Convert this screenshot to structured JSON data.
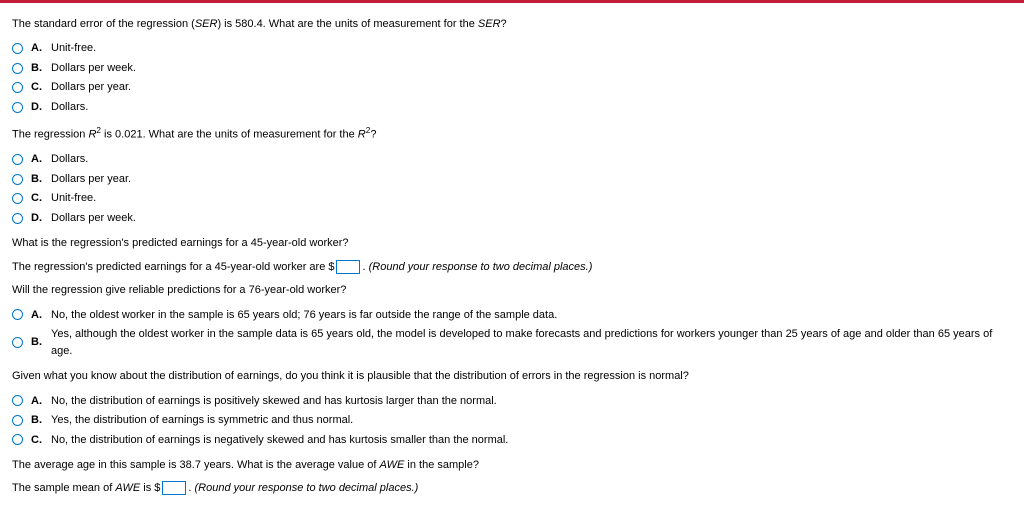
{
  "q1": {
    "prompt_pre": "The standard error of the regression (",
    "prompt_italic": "SER",
    "prompt_post": ") is 580.4. What are the units of measurement for the ",
    "prompt_italic2": "SER",
    "prompt_end": "?",
    "options": [
      {
        "letter": "A.",
        "text": "Unit-free."
      },
      {
        "letter": "B.",
        "text": "Dollars per week."
      },
      {
        "letter": "C.",
        "text": "Dollars per year."
      },
      {
        "letter": "D.",
        "text": "Dollars."
      }
    ]
  },
  "q2": {
    "prompt_pre": "The regression ",
    "prompt_italic": "R",
    "prompt_sup": "2",
    "prompt_mid": " is 0.021. What are the units of measurement for the ",
    "prompt_italic2": "R",
    "prompt_sup2": "2",
    "prompt_end": "?",
    "options": [
      {
        "letter": "A.",
        "text": "Dollars."
      },
      {
        "letter": "B.",
        "text": "Dollars per year."
      },
      {
        "letter": "C.",
        "text": "Unit-free."
      },
      {
        "letter": "D.",
        "text": "Dollars per week."
      }
    ]
  },
  "q3": {
    "prompt": "What is the regression's predicted earnings for a 45-year-old worker?",
    "line_pre": "The regression's predicted earnings for a 45-year-old worker are $",
    "line_post": ". ",
    "hint": "(Round your response to two decimal places.)"
  },
  "q4": {
    "prompt": "Will the regression give reliable predictions for a 76-year-old worker?",
    "options": [
      {
        "letter": "A.",
        "text": "No, the oldest worker in the sample is 65 years old; 76 years is far outside the range of the sample data."
      },
      {
        "letter": "B.",
        "text": "Yes, although the oldest worker in the sample data is 65 years old, the model is developed to make forecasts and predictions for workers younger than 25 years of age and older than 65 years of age."
      }
    ]
  },
  "q5": {
    "prompt": "Given what you know about the distribution of earnings, do you think it is plausible that the distribution of errors in the regression is normal?",
    "options": [
      {
        "letter": "A.",
        "text": "No, the distribution of earnings is positively skewed and has kurtosis larger than the normal."
      },
      {
        "letter": "B.",
        "text": "Yes, the distribution of earnings is symmetric and thus normal."
      },
      {
        "letter": "C.",
        "text": "No, the distribution of earnings is negatively skewed and has kurtosis smaller than the normal."
      }
    ]
  },
  "q6": {
    "prompt_pre": "The average age in this sample is 38.7 years. What is the average value of ",
    "prompt_italic": "AWE",
    "prompt_post": " in the sample?",
    "line_pre": "The sample mean of ",
    "line_italic": "AWE",
    "line_mid": " is $",
    "line_post": ". ",
    "hint": "(Round your response to two decimal places.)"
  }
}
